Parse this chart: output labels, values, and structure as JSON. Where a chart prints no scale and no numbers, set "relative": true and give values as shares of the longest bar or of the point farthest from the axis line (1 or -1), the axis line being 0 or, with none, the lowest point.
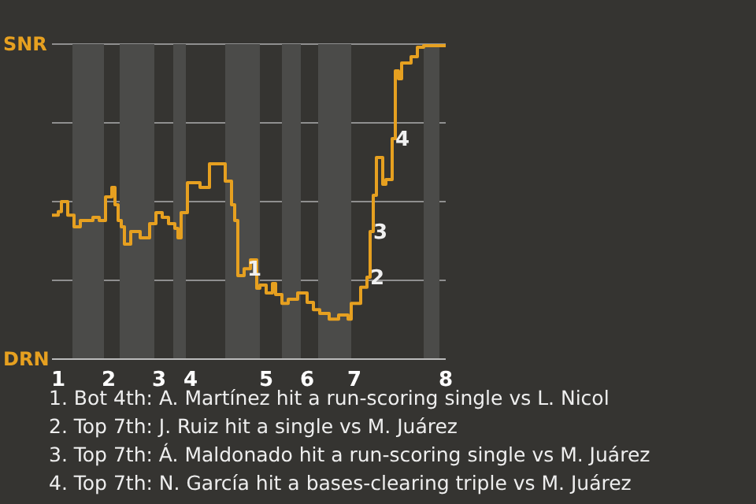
{
  "chart_data": {
    "type": "step",
    "relative": true,
    "categories": [
      null,
      null,
      "1",
      null,
      null,
      null,
      null,
      null,
      null,
      null,
      null,
      null,
      null,
      null,
      null,
      null,
      null,
      null,
      "2",
      null,
      null,
      null,
      null,
      null,
      null,
      null,
      null,
      null,
      null,
      null,
      null,
      null,
      null,
      null,
      "3",
      null,
      null,
      null,
      null,
      null,
      null,
      null,
      null,
      null,
      "4",
      null,
      null,
      null,
      null,
      null,
      null,
      null,
      null,
      null,
      null,
      null,
      null,
      null,
      null,
      null,
      null,
      null,
      null,
      null,
      null,
      null,
      null,
      null,
      "5",
      null,
      null,
      null,
      null,
      null,
      null,
      null,
      null,
      null,
      null,
      null,
      null,
      "6",
      null,
      null,
      null,
      null,
      null,
      null,
      null,
      null,
      null,
      null,
      null,
      null,
      null,
      null,
      "7",
      null,
      null,
      null,
      null,
      null,
      null,
      null,
      null,
      null,
      null,
      null,
      null,
      null,
      null,
      null,
      null,
      null,
      null,
      null,
      null,
      null,
      null,
      null,
      null,
      null,
      null,
      null,
      null,
      "8"
    ],
    "series": [
      {
        "color": "#e6a020",
        "values": [
          0.457,
          0.457,
          0.468,
          0.5,
          0.5,
          0.457,
          0.457,
          0.42,
          0.42,
          0.44,
          0.44,
          0.44,
          0.44,
          0.45,
          0.45,
          0.44,
          0.44,
          0.515,
          0.515,
          0.545,
          0.49,
          0.44,
          0.42,
          0.365,
          0.365,
          0.405,
          0.405,
          0.405,
          0.385,
          0.385,
          0.385,
          0.43,
          0.43,
          0.465,
          0.465,
          0.45,
          0.45,
          0.43,
          0.43,
          0.415,
          0.385,
          0.465,
          0.465,
          0.56,
          0.56,
          0.56,
          0.56,
          0.545,
          0.545,
          0.545,
          0.62,
          0.62,
          0.62,
          0.62,
          0.62,
          0.565,
          0.565,
          0.49,
          0.44,
          0.265,
          0.265,
          0.287,
          0.287,
          0.315,
          0.315,
          0.225,
          0.235,
          0.235,
          0.21,
          0.21,
          0.24,
          0.205,
          0.205,
          0.177,
          0.177,
          0.19,
          0.19,
          0.19,
          0.21,
          0.21,
          0.21,
          0.18,
          0.18,
          0.157,
          0.157,
          0.145,
          0.145,
          0.145,
          0.127,
          0.127,
          0.127,
          0.14,
          0.14,
          0.14,
          0.127,
          0.177,
          0.177,
          0.177,
          0.228,
          0.228,
          0.26,
          0.405,
          0.52,
          0.64,
          0.64,
          0.555,
          0.57,
          0.57,
          0.7,
          0.915,
          0.89,
          0.94,
          0.94,
          0.94,
          0.96,
          0.96,
          0.99,
          0.99,
          0.995,
          0.995,
          0.995,
          0.995,
          0.995,
          0.995,
          0.995,
          1.0
        ]
      }
    ],
    "grid": "y",
    "marker": "none",
    "line_style": "solid",
    "annotations": [
      "SNR",
      "DRN",
      {
        "text": "1",
        "y": 0.287
      },
      {
        "text": "2",
        "y": 0.26
      },
      {
        "text": "3",
        "y": 0.405
      },
      {
        "text": "4",
        "y": 0.7
      },
      "1. Bot 4th: A. Martínez hit a run-scoring single vs L. Nicol",
      "2. Top 7th: J. Ruiz hit a single vs M. Juárez",
      "3. Top 7th: Á. Maldonado hit a run-scoring single vs M. Juárez",
      "4. Top 7th: N. García hit a bases-clearing triple vs M. Juárez"
    ]
  }
}
